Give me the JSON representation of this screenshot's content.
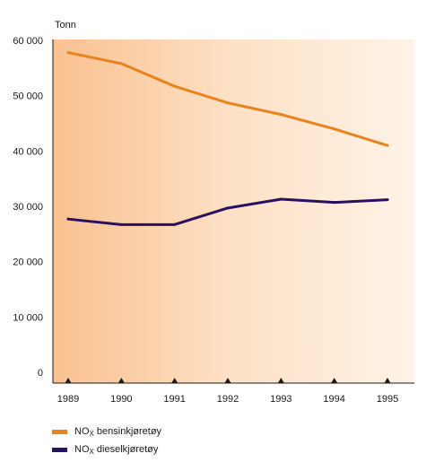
{
  "chart_data": {
    "type": "line",
    "unit_label": "Tonn",
    "x": [
      "1989",
      "1990",
      "1991",
      "1992",
      "1993",
      "1994",
      "1995"
    ],
    "ylim": [
      0,
      60000
    ],
    "yticks": [
      0,
      10000,
      20000,
      30000,
      40000,
      50000,
      60000
    ],
    "ytick_labels": [
      "0",
      "10 000",
      "20 000",
      "30 000",
      "40 000",
      "50 000",
      "60 000"
    ],
    "grid": false,
    "series": [
      {
        "name_main": "NO",
        "name_sub": "X",
        "name_rest": " bensinkjøretøy",
        "color": "#e8831e",
        "values": [
          57800,
          55800,
          51700,
          48700,
          46600,
          44000,
          41000
        ]
      },
      {
        "name_main": "NO",
        "name_sub": "X",
        "name_rest": " dieselkjøretøy",
        "color": "#2a1060",
        "values": [
          27700,
          26700,
          26700,
          29700,
          31300,
          30700,
          31200
        ]
      }
    ],
    "legend_position": "bottom-left"
  }
}
